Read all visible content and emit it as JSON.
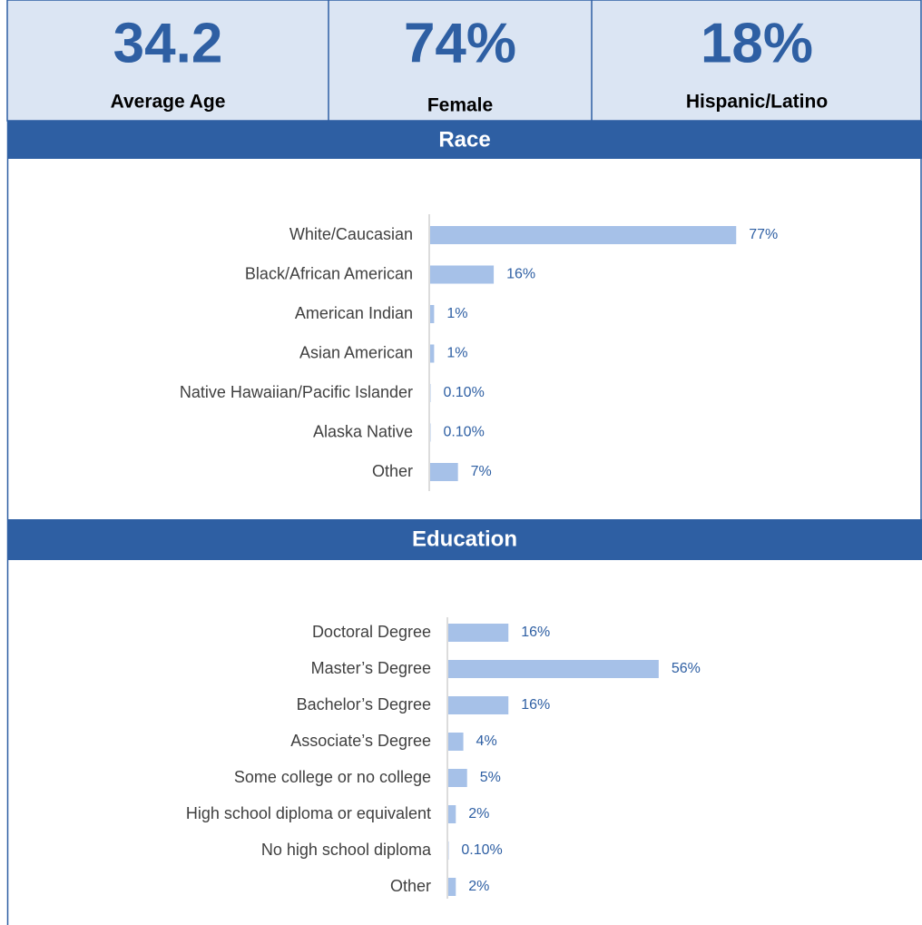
{
  "stats": [
    {
      "value": "34.2",
      "label": "Average Age"
    },
    {
      "value": "74%",
      "label": "Female"
    },
    {
      "value": "18%",
      "label": "Hispanic/Latino"
    }
  ],
  "chart_data": [
    {
      "type": "bar",
      "orientation": "horizontal",
      "title": "Race",
      "color": "#a6c1e8",
      "categories": [
        "White/Caucasian",
        "Black/African American",
        "American Indian",
        "Asian American",
        "Native Hawaiian/Pacific Islander",
        "Alaska Native",
        "Other"
      ],
      "values": [
        77,
        16,
        1,
        1,
        0.1,
        0.1,
        7
      ],
      "value_labels": [
        "77%",
        "16%",
        "1%",
        "1%",
        "0.10%",
        "0.10%",
        "7%"
      ]
    },
    {
      "type": "bar",
      "orientation": "horizontal",
      "title": "Education",
      "color": "#a6c1e8",
      "categories": [
        "Doctoral Degree",
        "Master’s Degree",
        "Bachelor’s Degree",
        "Associate’s Degree",
        "Some college or no college",
        "High school diploma or equivalent",
        "No high school diploma",
        "Other"
      ],
      "values": [
        16,
        56,
        16,
        4,
        5,
        2,
        0.1,
        2
      ],
      "value_labels": [
        "16%",
        "56%",
        "16%",
        "4%",
        "5%",
        "2%",
        "0.10%",
        "2%"
      ]
    }
  ]
}
